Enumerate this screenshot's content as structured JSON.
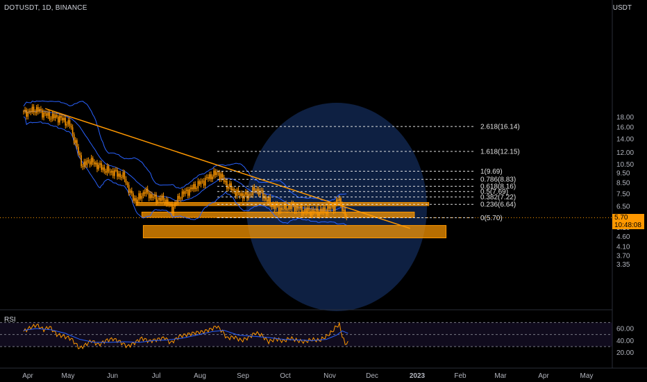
{
  "header": {
    "symbol": "DOTUSDT, 1D, BINANCE",
    "currency": "USDT",
    "indicator": "RSI"
  },
  "price_tag": {
    "price": "5.70",
    "countdown": "10:48:08"
  },
  "colors": {
    "background": "#000000",
    "candle": "#ff9800",
    "bands": "#2962ff",
    "trendline": "#ff9800",
    "zone": "#ff9800",
    "circle": "#1a3a78",
    "rsi_line": "#ff9800",
    "rsi_ma": "#2962ff"
  },
  "chart_data": [
    {
      "type": "candlestick",
      "title": "DOTUSDT, 1D, BINANCE",
      "y_scale": "log",
      "ylim": [
        3.3,
        20.5
      ],
      "y_ticks": [
        "3.35",
        "3.70",
        "4.10",
        "4.60",
        "5.10",
        "5.70",
        "6.50",
        "7.50",
        "8.50",
        "9.50",
        "10.50",
        "12.00",
        "14.00",
        "16.00",
        "18.00"
      ],
      "x_ticks": [
        "Apr",
        "May",
        "Jun",
        "Jul",
        "Aug",
        "Sep",
        "Oct",
        "Nov",
        "Dec",
        "2023",
        "Feb",
        "Mar",
        "Apr",
        "May"
      ],
      "last_price": 5.7,
      "price_path": [
        [
          "2022-04-01",
          18.8
        ],
        [
          "2022-04-10",
          19.6
        ],
        [
          "2022-04-18",
          18.2
        ],
        [
          "2022-04-26",
          17.8
        ],
        [
          "2022-05-03",
          16.5
        ],
        [
          "2022-05-09",
          12.0
        ],
        [
          "2022-05-12",
          10.2
        ],
        [
          "2022-05-16",
          11.0
        ],
        [
          "2022-05-22",
          10.4
        ],
        [
          "2022-05-28",
          9.8
        ],
        [
          "2022-06-04",
          9.5
        ],
        [
          "2022-06-10",
          9.0
        ],
        [
          "2022-06-14",
          7.5
        ],
        [
          "2022-06-18",
          6.9
        ],
        [
          "2022-06-24",
          7.7
        ],
        [
          "2022-07-01",
          7.1
        ],
        [
          "2022-07-08",
          7.0
        ],
        [
          "2022-07-13",
          6.3
        ],
        [
          "2022-07-19",
          7.4
        ],
        [
          "2022-07-26",
          7.9
        ],
        [
          "2022-08-03",
          8.6
        ],
        [
          "2022-08-10",
          9.3
        ],
        [
          "2022-08-14",
          9.5
        ],
        [
          "2022-08-20",
          8.3
        ],
        [
          "2022-08-27",
          7.5
        ],
        [
          "2022-09-03",
          7.3
        ],
        [
          "2022-09-09",
          7.9
        ],
        [
          "2022-09-13",
          7.5
        ],
        [
          "2022-09-20",
          6.6
        ],
        [
          "2022-09-27",
          6.3
        ],
        [
          "2022-10-05",
          6.5
        ],
        [
          "2022-10-12",
          6.2
        ],
        [
          "2022-10-20",
          6.1
        ],
        [
          "2022-10-27",
          6.2
        ],
        [
          "2022-11-02",
          6.5
        ],
        [
          "2022-11-05",
          7.0
        ],
        [
          "2022-11-07",
          6.8
        ],
        [
          "2022-11-09",
          6.0
        ],
        [
          "2022-11-11",
          5.7
        ]
      ],
      "trendline": [
        [
          "2022-04-16",
          19.8
        ],
        [
          "2022-12-25",
          5.05
        ]
      ],
      "fibonacci_levels": [
        {
          "label": "2.618(16.14)",
          "price": 16.14
        },
        {
          "label": "1.618(12.15)",
          "price": 12.15
        },
        {
          "label": "1(9.69)",
          "price": 9.69
        },
        {
          "label": "0.786(8.83)",
          "price": 8.83
        },
        {
          "label": "0.618(8.16)",
          "price": 8.16
        },
        {
          "label": "0.5(7.69)",
          "price": 7.69
        },
        {
          "label": "0.382(7.22)",
          "price": 7.22
        },
        {
          "label": "0.236(6.64)",
          "price": 6.64
        },
        {
          "label": "0(5.70)",
          "price": 5.7
        }
      ],
      "zones": [
        {
          "from": "2022-06-18",
          "to": "2023-01-07",
          "low": 6.55,
          "high": 6.78
        },
        {
          "from": "2022-06-22",
          "to": "2022-12-28",
          "low": 5.72,
          "high": 6.08
        },
        {
          "from": "2022-06-23",
          "to": "2023-01-19",
          "low": 4.53,
          "high": 5.22
        }
      ]
    },
    {
      "type": "line",
      "title": "RSI",
      "ylim": [
        15,
        75
      ],
      "y_ticks": [
        "20.00",
        "40.00",
        "60.00"
      ],
      "guide_levels": [
        30,
        50,
        70
      ],
      "series": [
        {
          "values": [
            [
              "2022-04-01",
              55
            ],
            [
              "2022-04-06",
              62
            ],
            [
              "2022-04-10",
              66
            ],
            [
              "2022-04-15",
              58
            ],
            [
              "2022-04-19",
              63
            ],
            [
              "2022-04-24",
              50
            ],
            [
              "2022-04-29",
              47
            ],
            [
              "2022-05-04",
              43
            ],
            [
              "2022-05-07",
              35
            ],
            [
              "2022-05-10",
              27
            ],
            [
              "2022-05-14",
              33
            ],
            [
              "2022-05-18",
              40
            ],
            [
              "2022-05-23",
              33
            ],
            [
              "2022-05-28",
              40
            ],
            [
              "2022-06-02",
              43
            ],
            [
              "2022-06-07",
              38
            ],
            [
              "2022-06-12",
              30
            ],
            [
              "2022-06-16",
              35
            ],
            [
              "2022-06-22",
              44
            ],
            [
              "2022-06-27",
              39
            ],
            [
              "2022-07-03",
              42
            ],
            [
              "2022-07-08",
              45
            ],
            [
              "2022-07-12",
              36
            ],
            [
              "2022-07-18",
              47
            ],
            [
              "2022-07-23",
              50
            ],
            [
              "2022-07-29",
              53
            ],
            [
              "2022-08-04",
              55
            ],
            [
              "2022-08-09",
              59
            ],
            [
              "2022-08-13",
              64
            ],
            [
              "2022-08-17",
              55
            ],
            [
              "2022-08-20",
              44
            ],
            [
              "2022-08-25",
              46
            ],
            [
              "2022-08-30",
              40
            ],
            [
              "2022-09-04",
              45
            ],
            [
              "2022-09-09",
              53
            ],
            [
              "2022-09-13",
              49
            ],
            [
              "2022-09-18",
              38
            ],
            [
              "2022-09-23",
              43
            ],
            [
              "2022-09-28",
              39
            ],
            [
              "2022-10-03",
              44
            ],
            [
              "2022-10-08",
              40
            ],
            [
              "2022-10-13",
              38
            ],
            [
              "2022-10-18",
              42
            ],
            [
              "2022-10-23",
              40
            ],
            [
              "2022-10-28",
              47
            ],
            [
              "2022-11-01",
              55
            ],
            [
              "2022-11-04",
              64
            ],
            [
              "2022-11-06",
              66
            ],
            [
              "2022-11-08",
              48
            ],
            [
              "2022-11-10",
              34
            ],
            [
              "2022-11-12",
              39
            ]
          ]
        },
        {
          "values": [
            [
              "2022-04-01",
              57
            ],
            [
              "2022-04-10",
              60
            ],
            [
              "2022-04-20",
              58
            ],
            [
              "2022-04-30",
              52
            ],
            [
              "2022-05-10",
              42
            ],
            [
              "2022-05-20",
              37
            ],
            [
              "2022-05-30",
              37
            ],
            [
              "2022-06-10",
              38
            ],
            [
              "2022-06-20",
              37
            ],
            [
              "2022-06-30",
              40
            ],
            [
              "2022-07-10",
              41
            ],
            [
              "2022-07-20",
              44
            ],
            [
              "2022-07-30",
              49
            ],
            [
              "2022-08-10",
              55
            ],
            [
              "2022-08-18",
              57
            ],
            [
              "2022-08-28",
              49
            ],
            [
              "2022-09-08",
              47
            ],
            [
              "2022-09-18",
              45
            ],
            [
              "2022-09-28",
              42
            ],
            [
              "2022-10-08",
              41
            ],
            [
              "2022-10-18",
              40
            ],
            [
              "2022-10-28",
              42
            ],
            [
              "2022-11-04",
              49
            ],
            [
              "2022-11-08",
              56
            ],
            [
              "2022-11-12",
              52
            ]
          ]
        }
      ]
    }
  ]
}
